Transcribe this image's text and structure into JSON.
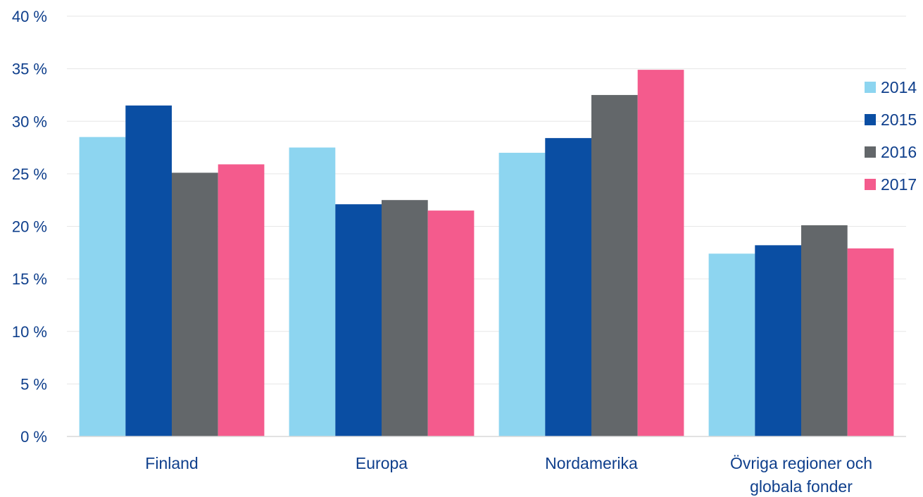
{
  "chart_data": {
    "type": "bar",
    "categories": [
      [
        "Finland"
      ],
      [
        "Europa"
      ],
      [
        "Nordamerika"
      ],
      [
        "Övriga regioner och",
        "globala fonder"
      ]
    ],
    "series": [
      {
        "name": "2014",
        "color": "#8dd5f0",
        "values": [
          28.5,
          27.5,
          27.0,
          17.4
        ]
      },
      {
        "name": "2015",
        "color": "#0a4ea3",
        "values": [
          31.5,
          22.1,
          28.4,
          18.2
        ]
      },
      {
        "name": "2016",
        "color": "#63676a",
        "values": [
          25.1,
          22.5,
          32.5,
          20.1
        ]
      },
      {
        "name": "2017",
        "color": "#f45b8d",
        "values": [
          25.9,
          21.5,
          34.9,
          17.9
        ]
      }
    ],
    "ylim": [
      0,
      40
    ],
    "yticks": [
      {
        "value": 0,
        "label": "0 %"
      },
      {
        "value": 5,
        "label": "5 %"
      },
      {
        "value": 10,
        "label": "10 %"
      },
      {
        "value": 15,
        "label": "15 %"
      },
      {
        "value": 20,
        "label": "20 %"
      },
      {
        "value": 25,
        "label": "25 %"
      },
      {
        "value": 30,
        "label": "30 %"
      },
      {
        "value": 35,
        "label": "35 %"
      },
      {
        "value": 40,
        "label": "40 %"
      }
    ],
    "grid": true,
    "legend_position": "right"
  }
}
